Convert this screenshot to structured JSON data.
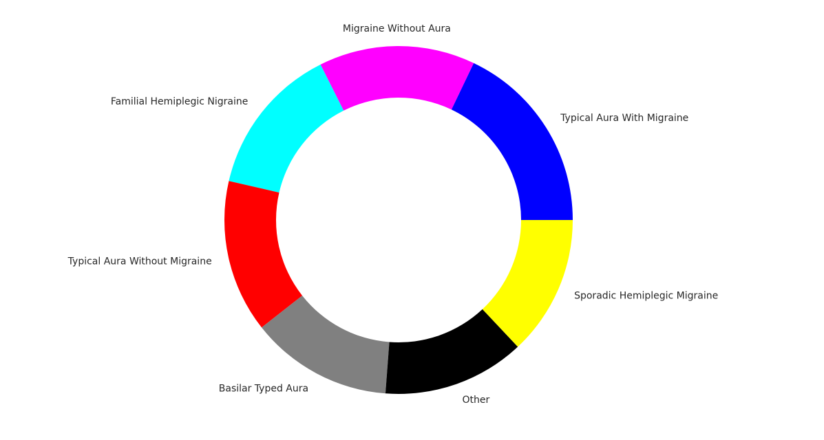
{
  "chart_data": {
    "type": "pie",
    "donut": true,
    "title": "",
    "start_angle_deg": 0,
    "direction": "counterclockwise",
    "slices": [
      {
        "label": "Typical Aura With Migraine",
        "value": 0.179,
        "color": "#0000ff"
      },
      {
        "label": "Migraine Without Aura",
        "value": 0.145,
        "color": "#ff00ff"
      },
      {
        "label": "Familial Hemiplegic Nigraine",
        "value": 0.14,
        "color": "#00ffff"
      },
      {
        "label": "Typical Aura Without Migraine",
        "value": 0.142,
        "color": "#ff0000"
      },
      {
        "label": "Basilar Typed Aura",
        "value": 0.132,
        "color": "#808080"
      },
      {
        "label": "Other",
        "value": 0.132,
        "color": "#000000"
      },
      {
        "label": "Sporadic Hemiplegic Migraine",
        "value": 0.13,
        "color": "#ffff00"
      }
    ]
  }
}
